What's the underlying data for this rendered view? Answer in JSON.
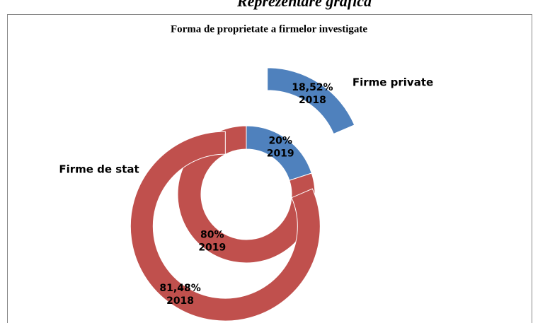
{
  "heading": "Reprezentare grafica",
  "chart_data": {
    "type": "doughnut",
    "title": "Forma de proprietate a firmelor investigate",
    "categories": [
      "Firme private",
      "Firme de stat"
    ],
    "colors": [
      "#4f81bd",
      "#c0504d"
    ],
    "series": [
      {
        "name": "2019",
        "values": [
          20,
          80
        ],
        "value_labels": [
          "20%",
          "80%"
        ]
      },
      {
        "name": "2018",
        "values": [
          18.52,
          81.48
        ],
        "value_labels": [
          "18,52%",
          "81,48%"
        ],
        "explode": true
      }
    ]
  }
}
